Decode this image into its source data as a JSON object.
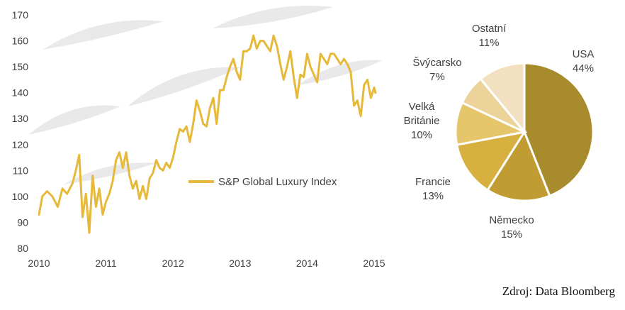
{
  "chart_data": [
    {
      "type": "line",
      "title": "",
      "xlabel": "",
      "ylabel": "",
      "x_ticks": [
        "2010",
        "2011",
        "2012",
        "2013",
        "2014",
        "2015"
      ],
      "y_ticks": [
        80,
        90,
        100,
        110,
        120,
        130,
        140,
        150,
        160,
        170
      ],
      "xlim": [
        2010,
        2015.05
      ],
      "ylim": [
        80,
        170
      ],
      "grid": false,
      "legend_position": "center-right",
      "series": [
        {
          "name": "S&P Global Luxury Index",
          "color": "#e6b93a",
          "x": [
            2010.0,
            2010.05,
            2010.12,
            2010.2,
            2010.28,
            2010.35,
            2010.42,
            2010.5,
            2010.55,
            2010.6,
            2010.65,
            2010.7,
            2010.75,
            2010.8,
            2010.85,
            2010.9,
            2010.95,
            2011.0,
            2011.05,
            2011.1,
            2011.15,
            2011.2,
            2011.25,
            2011.3,
            2011.35,
            2011.4,
            2011.45,
            2011.5,
            2011.55,
            2011.6,
            2011.65,
            2011.7,
            2011.75,
            2011.8,
            2011.85,
            2011.9,
            2011.95,
            2012.0,
            2012.05,
            2012.1,
            2012.15,
            2012.2,
            2012.25,
            2012.3,
            2012.35,
            2012.4,
            2012.45,
            2012.5,
            2012.55,
            2012.6,
            2012.65,
            2012.7,
            2012.75,
            2012.8,
            2012.85,
            2012.9,
            2012.95,
            2013.0,
            2013.05,
            2013.1,
            2013.15,
            2013.2,
            2013.25,
            2013.3,
            2013.35,
            2013.4,
            2013.45,
            2013.5,
            2013.55,
            2013.6,
            2013.65,
            2013.7,
            2013.75,
            2013.8,
            2013.85,
            2013.9,
            2013.95,
            2014.0,
            2014.05,
            2014.1,
            2014.15,
            2014.2,
            2014.25,
            2014.3,
            2014.35,
            2014.4,
            2014.45,
            2014.5,
            2014.55,
            2014.6,
            2014.65,
            2014.7,
            2014.75,
            2014.8,
            2014.85,
            2014.9,
            2014.95,
            2015.0,
            2015.02
          ],
          "values": [
            93,
            100,
            102,
            100,
            96,
            103,
            101,
            105,
            110,
            116,
            92,
            101,
            86,
            108,
            96,
            103,
            93,
            98,
            101,
            106,
            114,
            117,
            111,
            117,
            108,
            103,
            106,
            99,
            104,
            99,
            107,
            109,
            114,
            111,
            110,
            113,
            111,
            115,
            121,
            126,
            125,
            127,
            121,
            128,
            137,
            133,
            128,
            127,
            134,
            138,
            128,
            141,
            141,
            146,
            150,
            153,
            148,
            145,
            156,
            156,
            157,
            162,
            157,
            160,
            160,
            158,
            156,
            162,
            158,
            151,
            145,
            150,
            156,
            146,
            138,
            147,
            146,
            155,
            150,
            147,
            144,
            155,
            153,
            151,
            155,
            155,
            153,
            151,
            153,
            151,
            148,
            135,
            137,
            131,
            143,
            145,
            138,
            142,
            140
          ]
        }
      ]
    },
    {
      "type": "pie",
      "title": "",
      "start_angle_deg": 0,
      "direction": "clockwise",
      "slices": [
        {
          "label": "USA",
          "value": 44,
          "value_label": "44%",
          "color": "#a78b2c"
        },
        {
          "label": "Německo",
          "value": 15,
          "value_label": "15%",
          "color": "#c09c33"
        },
        {
          "label": "Francie",
          "value": 13,
          "value_label": "13%",
          "color": "#d7b040"
        },
        {
          "label_lines": [
            "Velká",
            "Británie"
          ],
          "value": 10,
          "value_label": "10%",
          "color": "#e6c66a"
        },
        {
          "label": "Švýcarsko",
          "value": 7,
          "value_label": "7%",
          "color": "#ecd39a"
        },
        {
          "label": "Ostatní",
          "value": 11,
          "value_label": "11%",
          "color": "#f2e0c0"
        }
      ]
    }
  ],
  "source_note": "Zdroj: Data Bloomberg"
}
